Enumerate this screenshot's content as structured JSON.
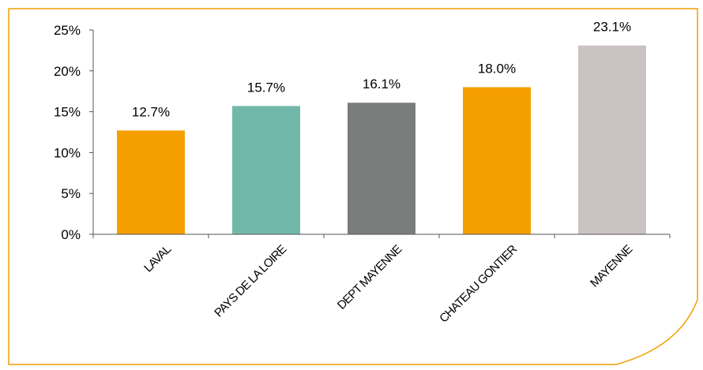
{
  "chart_data": {
    "type": "bar",
    "categories": [
      "LAVAL",
      "PAYS DE LA LOIRE",
      "DEPT MAYENNE",
      "CHATEAU GONTIER",
      "MAYENNE"
    ],
    "values": [
      12.7,
      15.7,
      16.1,
      18.0,
      23.1
    ],
    "value_labels": [
      "12.7%",
      "15.7%",
      "16.1%",
      "18.0%",
      "23.1%"
    ],
    "bar_colors": [
      "#F49E00",
      "#72B8AA",
      "#7A7D7B",
      "#F49E00",
      "#CBC2C2"
    ],
    "ylim": [
      0,
      25
    ],
    "yticks": [
      0,
      5,
      10,
      15,
      20,
      25
    ],
    "ytick_labels": [
      "0%",
      "5%",
      "10%",
      "15%",
      "20%",
      "25%"
    ],
    "title": "",
    "xlabel": "",
    "ylabel": "",
    "grid": false,
    "legend": "none",
    "frame_color": "#F49E00"
  }
}
